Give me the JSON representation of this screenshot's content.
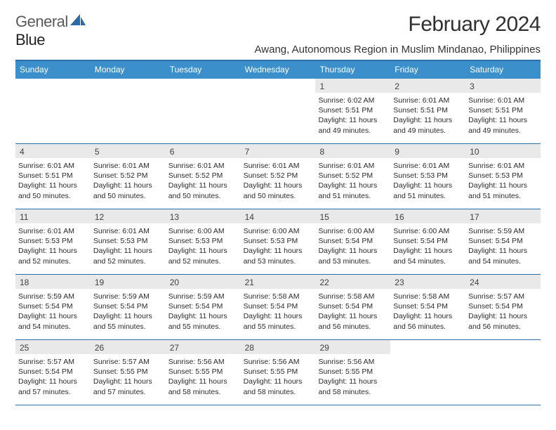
{
  "brand": {
    "part1": "General",
    "part2": "Blue"
  },
  "title": "February 2024",
  "location": "Awang, Autonomous Region in Muslim Mindanao, Philippines",
  "colors": {
    "header_bg": "#3b8fcb",
    "header_border": "#2a6fa8",
    "daynum_bg": "#e9e9e9",
    "text": "#2b2b2b",
    "title_text": "#303030"
  },
  "dayHeaders": [
    "Sunday",
    "Monday",
    "Tuesday",
    "Wednesday",
    "Thursday",
    "Friday",
    "Saturday"
  ],
  "weeks": [
    [
      {
        "day": "",
        "sunrise": "",
        "sunset": "",
        "daylight": ""
      },
      {
        "day": "",
        "sunrise": "",
        "sunset": "",
        "daylight": ""
      },
      {
        "day": "",
        "sunrise": "",
        "sunset": "",
        "daylight": ""
      },
      {
        "day": "",
        "sunrise": "",
        "sunset": "",
        "daylight": ""
      },
      {
        "day": "1",
        "sunrise": "Sunrise: 6:02 AM",
        "sunset": "Sunset: 5:51 PM",
        "daylight": "Daylight: 11 hours and 49 minutes."
      },
      {
        "day": "2",
        "sunrise": "Sunrise: 6:01 AM",
        "sunset": "Sunset: 5:51 PM",
        "daylight": "Daylight: 11 hours and 49 minutes."
      },
      {
        "day": "3",
        "sunrise": "Sunrise: 6:01 AM",
        "sunset": "Sunset: 5:51 PM",
        "daylight": "Daylight: 11 hours and 49 minutes."
      }
    ],
    [
      {
        "day": "4",
        "sunrise": "Sunrise: 6:01 AM",
        "sunset": "Sunset: 5:51 PM",
        "daylight": "Daylight: 11 hours and 50 minutes."
      },
      {
        "day": "5",
        "sunrise": "Sunrise: 6:01 AM",
        "sunset": "Sunset: 5:52 PM",
        "daylight": "Daylight: 11 hours and 50 minutes."
      },
      {
        "day": "6",
        "sunrise": "Sunrise: 6:01 AM",
        "sunset": "Sunset: 5:52 PM",
        "daylight": "Daylight: 11 hours and 50 minutes."
      },
      {
        "day": "7",
        "sunrise": "Sunrise: 6:01 AM",
        "sunset": "Sunset: 5:52 PM",
        "daylight": "Daylight: 11 hours and 50 minutes."
      },
      {
        "day": "8",
        "sunrise": "Sunrise: 6:01 AM",
        "sunset": "Sunset: 5:52 PM",
        "daylight": "Daylight: 11 hours and 51 minutes."
      },
      {
        "day": "9",
        "sunrise": "Sunrise: 6:01 AM",
        "sunset": "Sunset: 5:53 PM",
        "daylight": "Daylight: 11 hours and 51 minutes."
      },
      {
        "day": "10",
        "sunrise": "Sunrise: 6:01 AM",
        "sunset": "Sunset: 5:53 PM",
        "daylight": "Daylight: 11 hours and 51 minutes."
      }
    ],
    [
      {
        "day": "11",
        "sunrise": "Sunrise: 6:01 AM",
        "sunset": "Sunset: 5:53 PM",
        "daylight": "Daylight: 11 hours and 52 minutes."
      },
      {
        "day": "12",
        "sunrise": "Sunrise: 6:01 AM",
        "sunset": "Sunset: 5:53 PM",
        "daylight": "Daylight: 11 hours and 52 minutes."
      },
      {
        "day": "13",
        "sunrise": "Sunrise: 6:00 AM",
        "sunset": "Sunset: 5:53 PM",
        "daylight": "Daylight: 11 hours and 52 minutes."
      },
      {
        "day": "14",
        "sunrise": "Sunrise: 6:00 AM",
        "sunset": "Sunset: 5:53 PM",
        "daylight": "Daylight: 11 hours and 53 minutes."
      },
      {
        "day": "15",
        "sunrise": "Sunrise: 6:00 AM",
        "sunset": "Sunset: 5:54 PM",
        "daylight": "Daylight: 11 hours and 53 minutes."
      },
      {
        "day": "16",
        "sunrise": "Sunrise: 6:00 AM",
        "sunset": "Sunset: 5:54 PM",
        "daylight": "Daylight: 11 hours and 54 minutes."
      },
      {
        "day": "17",
        "sunrise": "Sunrise: 5:59 AM",
        "sunset": "Sunset: 5:54 PM",
        "daylight": "Daylight: 11 hours and 54 minutes."
      }
    ],
    [
      {
        "day": "18",
        "sunrise": "Sunrise: 5:59 AM",
        "sunset": "Sunset: 5:54 PM",
        "daylight": "Daylight: 11 hours and 54 minutes."
      },
      {
        "day": "19",
        "sunrise": "Sunrise: 5:59 AM",
        "sunset": "Sunset: 5:54 PM",
        "daylight": "Daylight: 11 hours and 55 minutes."
      },
      {
        "day": "20",
        "sunrise": "Sunrise: 5:59 AM",
        "sunset": "Sunset: 5:54 PM",
        "daylight": "Daylight: 11 hours and 55 minutes."
      },
      {
        "day": "21",
        "sunrise": "Sunrise: 5:58 AM",
        "sunset": "Sunset: 5:54 PM",
        "daylight": "Daylight: 11 hours and 55 minutes."
      },
      {
        "day": "22",
        "sunrise": "Sunrise: 5:58 AM",
        "sunset": "Sunset: 5:54 PM",
        "daylight": "Daylight: 11 hours and 56 minutes."
      },
      {
        "day": "23",
        "sunrise": "Sunrise: 5:58 AM",
        "sunset": "Sunset: 5:54 PM",
        "daylight": "Daylight: 11 hours and 56 minutes."
      },
      {
        "day": "24",
        "sunrise": "Sunrise: 5:57 AM",
        "sunset": "Sunset: 5:54 PM",
        "daylight": "Daylight: 11 hours and 56 minutes."
      }
    ],
    [
      {
        "day": "25",
        "sunrise": "Sunrise: 5:57 AM",
        "sunset": "Sunset: 5:54 PM",
        "daylight": "Daylight: 11 hours and 57 minutes."
      },
      {
        "day": "26",
        "sunrise": "Sunrise: 5:57 AM",
        "sunset": "Sunset: 5:55 PM",
        "daylight": "Daylight: 11 hours and 57 minutes."
      },
      {
        "day": "27",
        "sunrise": "Sunrise: 5:56 AM",
        "sunset": "Sunset: 5:55 PM",
        "daylight": "Daylight: 11 hours and 58 minutes."
      },
      {
        "day": "28",
        "sunrise": "Sunrise: 5:56 AM",
        "sunset": "Sunset: 5:55 PM",
        "daylight": "Daylight: 11 hours and 58 minutes."
      },
      {
        "day": "29",
        "sunrise": "Sunrise: 5:56 AM",
        "sunset": "Sunset: 5:55 PM",
        "daylight": "Daylight: 11 hours and 58 minutes."
      },
      {
        "day": "",
        "sunrise": "",
        "sunset": "",
        "daylight": ""
      },
      {
        "day": "",
        "sunrise": "",
        "sunset": "",
        "daylight": ""
      }
    ]
  ]
}
